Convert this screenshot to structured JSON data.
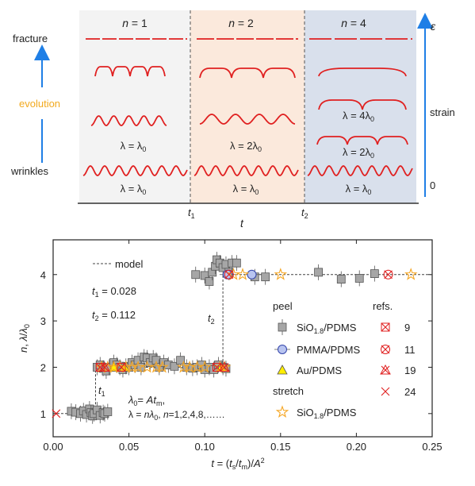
{
  "colors": {
    "panel_n1": "#f3f3f3",
    "panel_n2": "#fbe9dc",
    "panel_n4": "#d9e0ec",
    "wave": "#e02020",
    "arrow": "#1f7fe6",
    "evolution_text": "#f2a91e",
    "sio_marker": "#a6a6a6",
    "pmma_marker": "#b8c4f0",
    "au_marker": "#ffee00",
    "star_marker": "#f5a623",
    "ref_marker": "#e02020"
  },
  "top": {
    "left_labels": {
      "fracture": "fracture",
      "evolution": "evolution",
      "wrinkles": "wrinkles"
    },
    "right_labels": {
      "epsilon": "ε",
      "strain": "strain",
      "zero": "0"
    },
    "axis": {
      "t1": "t",
      "t1_sub": "1",
      "t": "t",
      "t2": "t",
      "t2_sub": "2"
    },
    "panels": [
      {
        "n_label": "n",
        "n_value": "= 1",
        "labels": {
          "row3": {
            "pre": "λ = λ",
            "sub": "0"
          },
          "row4": {
            "pre": "λ = λ",
            "sub": "0"
          }
        }
      },
      {
        "n_label": "n",
        "n_value": "= 2",
        "labels": {
          "row3": {
            "pre": "λ = 2λ",
            "sub": "0"
          },
          "row4": {
            "pre": "λ = λ",
            "sub": "0"
          }
        }
      },
      {
        "n_label": "n",
        "n_value": "= 4",
        "labels": {
          "row2": {
            "pre": "λ = 4λ",
            "sub": "0"
          },
          "row3": {
            "pre": "λ = 2λ",
            "sub": "0"
          },
          "row4": {
            "pre": "λ = λ",
            "sub": "0"
          }
        }
      }
    ]
  },
  "chart_data": {
    "type": "scatter",
    "xlim": [
      0,
      0.25
    ],
    "ylim": [
      0.5,
      4.75
    ],
    "x_ticks": [
      0.0,
      0.05,
      0.1,
      0.15,
      0.2,
      0.25
    ],
    "x_tick_labels": [
      "0.00",
      "0.05",
      "0.10",
      "0.15",
      "0.20",
      "0.25"
    ],
    "y_ticks": [
      1,
      2,
      3,
      4
    ],
    "y_tick_labels": [
      "1",
      "2",
      "3",
      "4"
    ],
    "xlabel": {
      "t": "t",
      "eq": " = (",
      "ts": "t",
      "ts_sub": "s",
      "slash": "/",
      "tm": "t",
      "tm_sub": "m",
      "close": ")/",
      "A": "A",
      "A_sup": "2"
    },
    "ylabel": {
      "n": "n",
      "comma": ", ",
      "lam": "λ",
      "slash": "/",
      "lam0": "λ",
      "lam0_sub": "0"
    },
    "model_legend": "model",
    "model_steps": [
      [
        0,
        1
      ],
      [
        0.028,
        1
      ],
      [
        0.028,
        2
      ],
      [
        0.112,
        2
      ],
      [
        0.112,
        4
      ],
      [
        0.25,
        4
      ]
    ],
    "t1_text": {
      "t": "t",
      "sub": "1",
      "val": " = 0.028"
    },
    "t2_text": {
      "t": "t",
      "sub": "2",
      "val": " = 0.112"
    },
    "t1_mark": {
      "t": "t",
      "sub": "1"
    },
    "t2_mark": {
      "t": "t",
      "sub": "2"
    },
    "formula1": {
      "lam": "λ",
      "sub0": "0",
      "eq": "= ",
      "A": "A",
      "t": "t",
      "subm": "m",
      "tail": ","
    },
    "formula2": {
      "pre": "λ = ",
      "n": "n",
      "lam": "λ",
      "sub0": "0",
      "comma": ", ",
      "n2": "n",
      "tail": "=1,2,4,8,……"
    },
    "legend": {
      "peel_title": "peel",
      "stretch_title": "stretch",
      "refs_title": "refs.",
      "entries": [
        {
          "name_pre": "SiO",
          "name_sub": "1.8",
          "name_post": "/PDMS",
          "marker": "square"
        },
        {
          "name_pre": "PMMA/PDMS",
          "name_sub": "",
          "name_post": "",
          "marker": "circle"
        },
        {
          "name_pre": "Au/PDMS",
          "name_sub": "",
          "name_post": "",
          "marker": "triangle"
        },
        {
          "name_pre": "SiO",
          "name_sub": "1.8",
          "name_post": "/PDMS",
          "marker": "star"
        }
      ],
      "refs": [
        {
          "label": "9",
          "marker": "xsquare"
        },
        {
          "label": "11",
          "marker": "xcircle"
        },
        {
          "label": "19",
          "marker": "xtriangle"
        },
        {
          "label": "24",
          "marker": "x"
        }
      ]
    },
    "series": [
      {
        "name": "SiO1.8/PDMS peel",
        "marker": "square",
        "points": [
          [
            0.012,
            1.05
          ],
          [
            0.015,
            1.03
          ],
          [
            0.018,
            1.0
          ],
          [
            0.02,
            1.06
          ],
          [
            0.022,
            0.98
          ],
          [
            0.024,
            1.1
          ],
          [
            0.025,
            1.02
          ],
          [
            0.026,
            0.95
          ],
          [
            0.027,
            1.0
          ],
          [
            0.029,
            1.08
          ],
          [
            0.031,
            0.96
          ],
          [
            0.033,
            1.02
          ],
          [
            0.034,
            1.0
          ],
          [
            0.036,
            1.04
          ],
          [
            0.029,
            2.0
          ],
          [
            0.031,
            2.05
          ],
          [
            0.033,
            1.98
          ],
          [
            0.035,
            1.92
          ],
          [
            0.037,
            2.0
          ],
          [
            0.04,
            2.1
          ],
          [
            0.042,
            2.05
          ],
          [
            0.044,
            2.0
          ],
          [
            0.046,
            1.95
          ],
          [
            0.048,
            2.02
          ],
          [
            0.05,
            2.0
          ],
          [
            0.052,
            2.1
          ],
          [
            0.054,
            2.05
          ],
          [
            0.056,
            2.15
          ],
          [
            0.058,
            2.0
          ],
          [
            0.06,
            2.22
          ],
          [
            0.062,
            2.2
          ],
          [
            0.064,
            2.1
          ],
          [
            0.066,
            2.2
          ],
          [
            0.068,
            2.15
          ],
          [
            0.07,
            2.0
          ],
          [
            0.073,
            2.1
          ],
          [
            0.076,
            2.05
          ],
          [
            0.08,
            2.02
          ],
          [
            0.084,
            2.15
          ],
          [
            0.088,
            2.0
          ],
          [
            0.092,
            1.98
          ],
          [
            0.095,
            2.0
          ],
          [
            0.098,
            2.05
          ],
          [
            0.1,
            1.95
          ],
          [
            0.103,
            2.0
          ],
          [
            0.106,
            1.95
          ],
          [
            0.109,
            2.05
          ],
          [
            0.112,
            2.0
          ],
          [
            0.114,
            1.97
          ],
          [
            0.094,
            4.0
          ],
          [
            0.1,
            3.98
          ],
          [
            0.103,
            3.85
          ],
          [
            0.105,
            4.05
          ],
          [
            0.107,
            4.18
          ],
          [
            0.108,
            4.32
          ],
          [
            0.11,
            4.25
          ],
          [
            0.112,
            4.15
          ],
          [
            0.114,
            4.22
          ],
          [
            0.116,
            4.05
          ],
          [
            0.118,
            4.25
          ],
          [
            0.121,
            4.25
          ],
          [
            0.133,
            3.95
          ],
          [
            0.14,
            3.95
          ],
          [
            0.175,
            4.05
          ],
          [
            0.19,
            3.9
          ],
          [
            0.202,
            3.92
          ],
          [
            0.212,
            4.02
          ]
        ]
      },
      {
        "name": "PMMA/PDMS peel",
        "marker": "circle",
        "points": [
          [
            0.115,
            4.0
          ],
          [
            0.131,
            4.0
          ]
        ]
      },
      {
        "name": "Au/PDMS peel",
        "marker": "triangle",
        "points": [
          [
            0.04,
            2.0
          ],
          [
            0.047,
            2.0
          ],
          [
            0.111,
            2.0
          ]
        ]
      },
      {
        "name": "SiO1.8/PDMS stretch",
        "marker": "star",
        "points": [
          [
            0.032,
            2.0
          ],
          [
            0.036,
            2.0
          ],
          [
            0.04,
            2.0
          ],
          [
            0.044,
            2.0
          ],
          [
            0.048,
            2.0
          ],
          [
            0.052,
            2.0
          ],
          [
            0.056,
            2.0
          ],
          [
            0.062,
            2.0
          ],
          [
            0.068,
            2.0
          ],
          [
            0.072,
            2.0
          ],
          [
            0.086,
            2.0
          ],
          [
            0.09,
            2.0
          ],
          [
            0.095,
            2.0
          ],
          [
            0.1,
            2.0
          ],
          [
            0.11,
            2.0
          ],
          [
            0.113,
            2.0
          ],
          [
            0.119,
            4.0
          ],
          [
            0.125,
            4.0
          ],
          [
            0.15,
            4.0
          ],
          [
            0.236,
            4.0
          ]
        ]
      },
      {
        "name": "ref 9",
        "marker": "xsquare",
        "points": [
          [
            0.031,
            2.0
          ],
          [
            0.045,
            2.0
          ],
          [
            0.108,
            2.0
          ]
        ]
      },
      {
        "name": "ref 11",
        "marker": "xcircle",
        "points": [
          [
            0.116,
            4.0
          ],
          [
            0.221,
            4.0
          ]
        ]
      },
      {
        "name": "ref 19",
        "marker": "xtriangle",
        "points": [
          [
            0.034,
            2.0
          ],
          [
            0.113,
            2.0
          ]
        ]
      },
      {
        "name": "ref 24",
        "marker": "x",
        "points": [
          [
            0.002,
            1.0
          ]
        ]
      }
    ]
  }
}
